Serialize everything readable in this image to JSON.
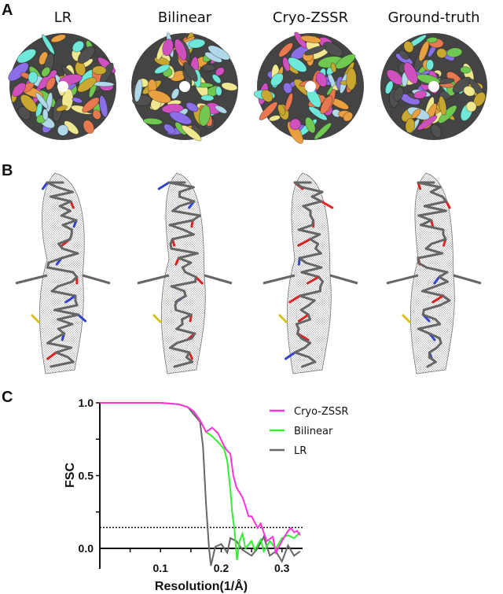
{
  "panels": {
    "a": "A",
    "b": "B",
    "c": "C"
  },
  "columns": [
    "LR",
    "Bilinear",
    "Cryo-ZSSR",
    "Ground-truth"
  ],
  "sphere_colors": [
    "#8a6fe8",
    "#6ee8d8",
    "#e8a040",
    "#505050",
    "#d050c0",
    "#f0e890",
    "#e87850",
    "#c8a830",
    "#70c850",
    "#b0d8e8"
  ],
  "chart_data": {
    "type": "line",
    "xlabel": "Resolution(1/Å)",
    "ylabel": "FSC",
    "xlim": [
      0,
      0.334
    ],
    "ylim": [
      -0.14,
      1.0
    ],
    "xticks": [
      "0.1",
      "0.2",
      "0.3"
    ],
    "xtick_values": [
      0.1,
      0.2,
      0.3
    ],
    "yticks": [
      "0.0",
      "0.5",
      "1.0"
    ],
    "ytick_values": [
      0,
      0.5,
      1.0
    ],
    "threshold": 0.143,
    "legend_position": "top-right",
    "series": [
      {
        "name": "Cryo-ZSSR",
        "color": "#ff33dd",
        "x": [
          0,
          0.1,
          0.13,
          0.145,
          0.155,
          0.165,
          0.175,
          0.185,
          0.195,
          0.205,
          0.21,
          0.215,
          0.22,
          0.225,
          0.235,
          0.24,
          0.245,
          0.25,
          0.255,
          0.26,
          0.265,
          0.275,
          0.285,
          0.29,
          0.3,
          0.31,
          0.315,
          0.32,
          0.325,
          0.33
        ],
        "y": [
          1,
          1,
          0.99,
          0.97,
          0.94,
          0.88,
          0.8,
          0.83,
          0.79,
          0.7,
          0.67,
          0.65,
          0.5,
          0.42,
          0.35,
          0.29,
          0.22,
          0.22,
          0.18,
          0.14,
          0.17,
          0.05,
          0.08,
          -0.03,
          0.05,
          0.12,
          0.14,
          0.11,
          0.12,
          0.09
        ]
      },
      {
        "name": "Bilinear",
        "color": "#33ee33",
        "x": [
          0,
          0.1,
          0.13,
          0.145,
          0.155,
          0.165,
          0.175,
          0.185,
          0.195,
          0.205,
          0.21,
          0.215,
          0.218,
          0.222,
          0.226,
          0.23,
          0.235,
          0.24,
          0.25,
          0.255,
          0.265,
          0.27,
          0.28,
          0.29,
          0.3,
          0.31,
          0.32,
          0.33
        ],
        "y": [
          1,
          1,
          0.99,
          0.97,
          0.94,
          0.88,
          0.8,
          0.77,
          0.73,
          0.68,
          0.6,
          0.4,
          0.25,
          0.12,
          -0.08,
          0.05,
          0.1,
          0.0,
          0.05,
          -0.01,
          0.06,
          -0.02,
          0.05,
          0.0,
          0.07,
          0.09,
          0.07,
          0.11
        ]
      },
      {
        "name": "LR",
        "color": "#666666",
        "x": [
          0,
          0.1,
          0.13,
          0.145,
          0.155,
          0.165,
          0.17,
          0.175,
          0.18,
          0.183,
          0.19,
          0.2,
          0.205,
          0.21,
          0.215,
          0.225,
          0.235,
          0.25,
          0.26,
          0.27,
          0.28,
          0.29,
          0.3,
          0.31,
          0.32,
          0.33
        ],
        "y": [
          1,
          1,
          0.99,
          0.97,
          0.92,
          0.87,
          0.7,
          0.3,
          0.0,
          -0.12,
          0.01,
          0.03,
          0.0,
          -0.03,
          0.07,
          0.05,
          -0.01,
          -0.05,
          0.0,
          0.08,
          -0.05,
          -0.02,
          -0.09,
          0.02,
          -0.05,
          -0.02
        ]
      }
    ]
  }
}
